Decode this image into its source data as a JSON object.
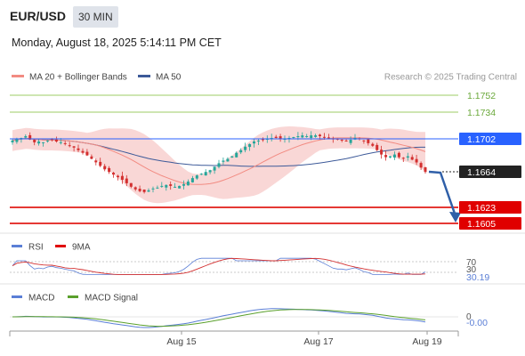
{
  "header": {
    "pair": "EUR/USD",
    "timeframe": "30 MIN",
    "datetime": "Monday, August 18, 2025 5:14:11 PM CET"
  },
  "legend": {
    "ma20_bb": "MA 20 + Bollinger Bands",
    "ma50": "MA 50",
    "credit": "Research © 2025 Trading Central"
  },
  "colors": {
    "up_candle": "#26a69a",
    "down_candle": "#d32f2f",
    "ma20": "#f28b82",
    "ma50": "#3d5a99",
    "resistance": "#9ccc65",
    "pivot": "#2962ff",
    "support": "#e53935",
    "rsi": "#5b7fd6",
    "macd_signal": "#5aa02c"
  },
  "levels": {
    "r2": "1.1752",
    "r1": "1.1734",
    "pivot": "1.1702",
    "last": "1.1664",
    "s1": "1.1623",
    "s2": "1.1605"
  },
  "rsi_panel": {
    "label_rsi": "RSI",
    "label_ma": "9MA",
    "level_upper": "70",
    "level_lower": "30",
    "value": "30.19"
  },
  "macd_panel": {
    "label_macd": "MACD",
    "label_signal": "MACD Signal",
    "zero": "0",
    "value": "-0.00"
  },
  "xaxis": {
    "ticks": [
      "Aug 15",
      "Aug 17",
      "Aug 19"
    ]
  },
  "chart_data": {
    "type": "candlestick",
    "symbol": "EUR/USD",
    "interval": "30 MIN",
    "y_range": [
      1.1596,
      1.1762
    ],
    "closes": [
      1.17,
      1.1702,
      1.1703,
      1.1705,
      1.1701,
      1.1698,
      1.1699,
      1.1698,
      1.17,
      1.1701,
      1.1699,
      1.1698,
      1.1696,
      1.1694,
      1.1692,
      1.1689,
      1.1686,
      1.1683,
      1.1679,
      1.1675,
      1.1671,
      1.1667,
      1.1664,
      1.1661,
      1.1658,
      1.1655,
      1.1651,
      1.1647,
      1.1644,
      1.1642,
      1.1641,
      1.1643,
      1.1645,
      1.1646,
      1.1648,
      1.1649,
      1.1648,
      1.1647,
      1.1648,
      1.165,
      1.1653,
      1.1657,
      1.166,
      1.1662,
      1.1664,
      1.1666,
      1.167,
      1.1674,
      1.1677,
      1.1679,
      1.1682,
      1.1686,
      1.1689,
      1.1693,
      1.1696,
      1.1699,
      1.17,
      1.1701,
      1.1702,
      1.1703,
      1.1703,
      1.1702,
      1.1702,
      1.1703,
      1.1704,
      1.1705,
      1.1706,
      1.1705,
      1.1706,
      1.1706,
      1.1705,
      1.1704,
      1.1703,
      1.1702,
      1.1701,
      1.17,
      1.1699,
      1.1701,
      1.1703,
      1.1702,
      1.17,
      1.1697,
      1.1694,
      1.1689,
      1.1684,
      1.1681,
      1.1682,
      1.1684,
      1.1681,
      1.168,
      1.1682,
      1.1678,
      1.1675,
      1.1669,
      1.1664
    ],
    "indicators": {
      "ma20": "MA 20 + Bollinger Bands",
      "ma50": "MA 50",
      "rsi_last": 30.19,
      "macd_last": -0.0
    },
    "levels": [
      1.1752,
      1.1734,
      1.1702,
      1.1664,
      1.1623,
      1.1605
    ],
    "x_ticks": [
      "Aug 15",
      "Aug 17",
      "Aug 19"
    ]
  }
}
